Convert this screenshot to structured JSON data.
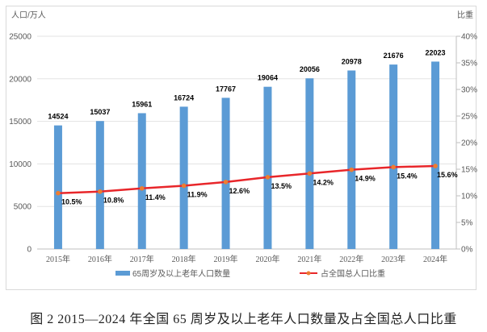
{
  "chart_data": {
    "type": "bar+line",
    "categories": [
      "2015年",
      "2016年",
      "2017年",
      "2018年",
      "2019年",
      "2020年",
      "2021年",
      "2022年",
      "2023年",
      "2024年"
    ],
    "series": [
      {
        "name": "65周岁及以上老年人口数量",
        "type": "bar",
        "axis": "left",
        "color": "#5b9bd5",
        "values": [
          14524,
          15037,
          15961,
          16724,
          17767,
          19064,
          20056,
          20978,
          21676,
          22023
        ]
      },
      {
        "name": "占全国总人口比重",
        "type": "line",
        "axis": "right",
        "color": "#e8262a",
        "marker_color": "#ed7d31",
        "values": [
          10.5,
          10.8,
          11.4,
          11.9,
          12.6,
          13.5,
          14.2,
          14.9,
          15.4,
          15.6
        ],
        "labels": [
          "10.5%",
          "10.8%",
          "11.4%",
          "11.9%",
          "12.6%",
          "13.5%",
          "14.2%",
          "14.9%",
          "15.4%",
          "15.6%"
        ]
      }
    ],
    "ylabel_left": "人口/万人",
    "ylabel_right": "比重",
    "ylim_left": [
      0,
      25000
    ],
    "yticks_left": [
      "0",
      "5000",
      "10000",
      "15000",
      "20000",
      "25000"
    ],
    "ylim_right": [
      0,
      40
    ],
    "yticks_right": [
      "0%",
      "5%",
      "10%",
      "15%",
      "20%",
      "25%",
      "30%",
      "35%",
      "40%"
    ],
    "grid": true,
    "legend": "bottom"
  },
  "caption": "图 2   2015—2024 年全国 65 周岁及以上老年人口数量及占全国总人口比重"
}
